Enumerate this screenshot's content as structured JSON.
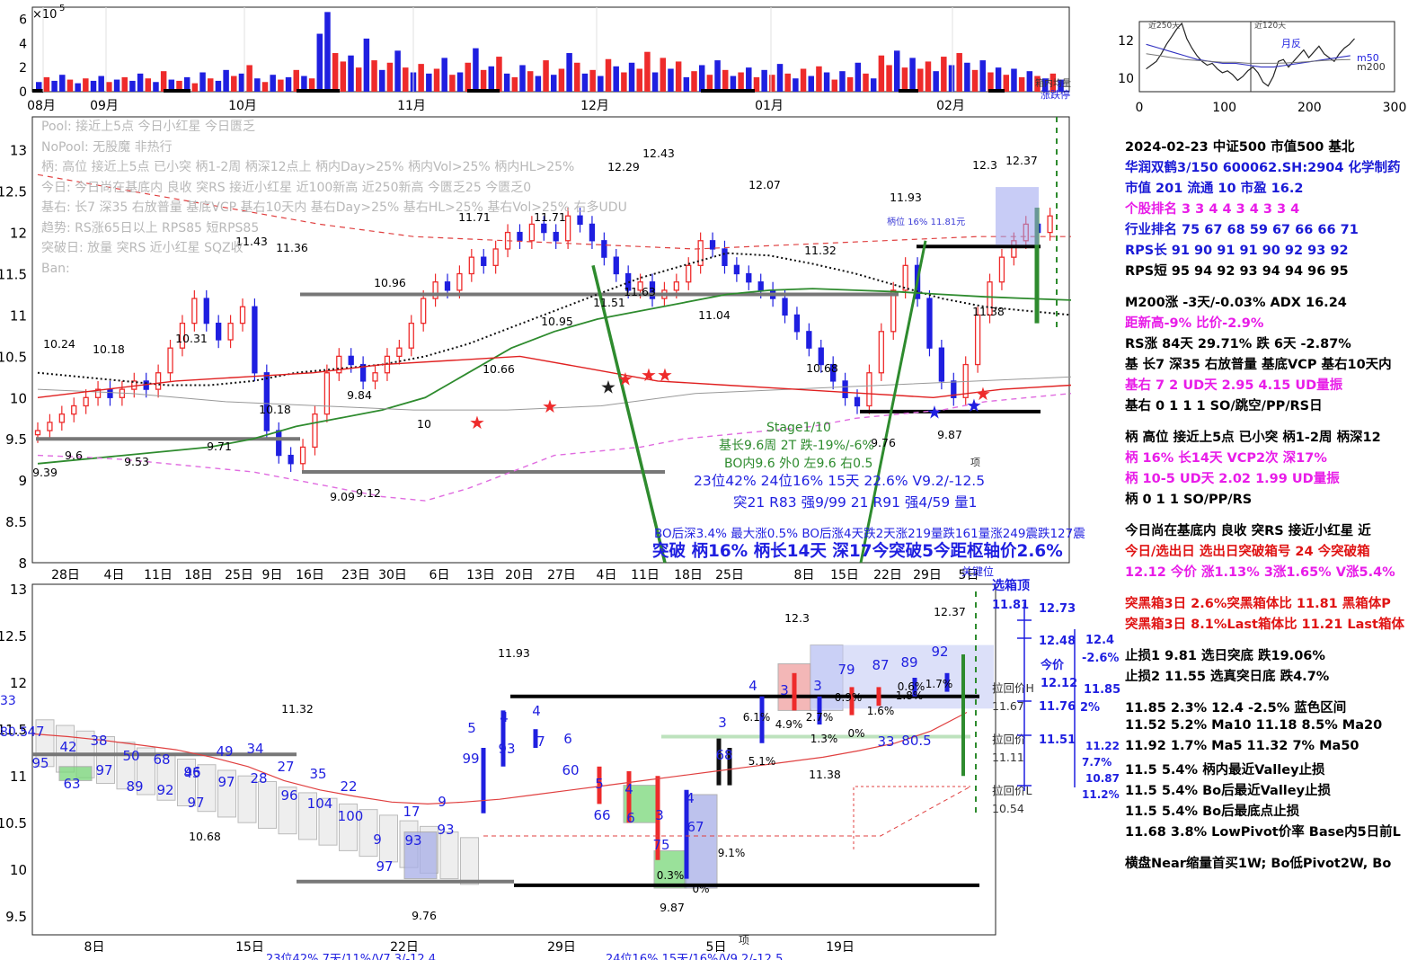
{
  "top_volume": {
    "exponent_label": "×10",
    "exponent_power": "5",
    "y_ticks": [
      "6",
      "4",
      "2",
      "0"
    ],
    "x_months": [
      "08月",
      "09月",
      "10月",
      "11月",
      "12月",
      "01月",
      "02月"
    ],
    "legend": [
      "箱内均量",
      "涨跌停"
    ],
    "bars": [
      {
        "v": 0.8,
        "c": "b"
      },
      {
        "v": 1.2,
        "c": "r"
      },
      {
        "v": 0.9,
        "c": "b"
      },
      {
        "v": 1.4,
        "c": "b"
      },
      {
        "v": 1.0,
        "c": "r"
      },
      {
        "v": 0.7,
        "c": "b"
      },
      {
        "v": 1.1,
        "c": "r"
      },
      {
        "v": 0.9,
        "c": "b"
      },
      {
        "v": 1.3,
        "c": "b"
      },
      {
        "v": 0.8,
        "c": "r"
      },
      {
        "v": 1.0,
        "c": "b"
      },
      {
        "v": 1.2,
        "c": "r"
      },
      {
        "v": 0.9,
        "c": "b"
      },
      {
        "v": 1.5,
        "c": "b"
      },
      {
        "v": 1.1,
        "c": "r"
      },
      {
        "v": 0.8,
        "c": "b"
      },
      {
        "v": 1.7,
        "c": "r"
      },
      {
        "v": 1.0,
        "c": "b"
      },
      {
        "v": 0.9,
        "c": "r"
      },
      {
        "v": 1.2,
        "c": "b"
      },
      {
        "v": 0.7,
        "c": "r"
      },
      {
        "v": 1.6,
        "c": "b"
      },
      {
        "v": 1.1,
        "c": "r"
      },
      {
        "v": 0.9,
        "c": "b"
      },
      {
        "v": 1.8,
        "c": "b"
      },
      {
        "v": 1.3,
        "c": "r"
      },
      {
        "v": 1.5,
        "c": "b"
      },
      {
        "v": 2.2,
        "c": "r"
      },
      {
        "v": 1.1,
        "c": "b"
      },
      {
        "v": 0.8,
        "c": "r"
      },
      {
        "v": 1.4,
        "c": "b"
      },
      {
        "v": 1.0,
        "c": "r"
      },
      {
        "v": 1.2,
        "c": "b"
      },
      {
        "v": 1.8,
        "c": "r"
      },
      {
        "v": 1.3,
        "c": "b"
      },
      {
        "v": 1.1,
        "c": "r"
      },
      {
        "v": 4.8,
        "c": "b"
      },
      {
        "v": 6.6,
        "c": "b"
      },
      {
        "v": 3.2,
        "c": "r"
      },
      {
        "v": 2.5,
        "c": "r"
      },
      {
        "v": 3.0,
        "c": "b"
      },
      {
        "v": 2.0,
        "c": "r"
      },
      {
        "v": 4.4,
        "c": "b"
      },
      {
        "v": 2.6,
        "c": "r"
      },
      {
        "v": 1.8,
        "c": "b"
      },
      {
        "v": 2.4,
        "c": "r"
      },
      {
        "v": 3.4,
        "c": "b"
      },
      {
        "v": 2.0,
        "c": "r"
      },
      {
        "v": 1.6,
        "c": "b"
      },
      {
        "v": 2.3,
        "c": "r"
      },
      {
        "v": 1.5,
        "c": "b"
      },
      {
        "v": 1.9,
        "c": "r"
      },
      {
        "v": 2.8,
        "c": "b"
      },
      {
        "v": 1.4,
        "c": "r"
      },
      {
        "v": 1.6,
        "c": "b"
      },
      {
        "v": 2.4,
        "c": "r"
      },
      {
        "v": 3.6,
        "c": "b"
      },
      {
        "v": 1.8,
        "c": "r"
      },
      {
        "v": 2.1,
        "c": "b"
      },
      {
        "v": 2.9,
        "c": "r"
      },
      {
        "v": 1.5,
        "c": "b"
      },
      {
        "v": 1.2,
        "c": "r"
      },
      {
        "v": 2.2,
        "c": "b"
      },
      {
        "v": 1.7,
        "c": "r"
      },
      {
        "v": 1.3,
        "c": "b"
      },
      {
        "v": 2.6,
        "c": "r"
      },
      {
        "v": 1.4,
        "c": "b"
      },
      {
        "v": 1.9,
        "c": "r"
      },
      {
        "v": 3.2,
        "c": "b"
      },
      {
        "v": 2.4,
        "c": "r"
      },
      {
        "v": 1.5,
        "c": "b"
      },
      {
        "v": 1.8,
        "c": "r"
      },
      {
        "v": 1.3,
        "c": "b"
      },
      {
        "v": 2.7,
        "c": "r"
      },
      {
        "v": 2.1,
        "c": "b"
      },
      {
        "v": 1.6,
        "c": "r"
      },
      {
        "v": 2.4,
        "c": "b"
      },
      {
        "v": 1.9,
        "c": "r"
      },
      {
        "v": 3.3,
        "c": "r"
      },
      {
        "v": 1.6,
        "c": "b"
      },
      {
        "v": 2.8,
        "c": "r"
      },
      {
        "v": 1.9,
        "c": "b"
      },
      {
        "v": 2.5,
        "c": "r"
      },
      {
        "v": 1.2,
        "c": "b"
      },
      {
        "v": 1.7,
        "c": "r"
      },
      {
        "v": 2.2,
        "c": "b"
      },
      {
        "v": 1.4,
        "c": "r"
      },
      {
        "v": 2.6,
        "c": "b"
      },
      {
        "v": 1.8,
        "c": "r"
      },
      {
        "v": 1.3,
        "c": "b"
      },
      {
        "v": 1.6,
        "c": "r"
      },
      {
        "v": 2.0,
        "c": "b"
      },
      {
        "v": 1.2,
        "c": "r"
      },
      {
        "v": 1.8,
        "c": "b"
      },
      {
        "v": 1.4,
        "c": "r"
      },
      {
        "v": 2.3,
        "c": "b"
      },
      {
        "v": 1.5,
        "c": "r"
      },
      {
        "v": 1.1,
        "c": "b"
      },
      {
        "v": 1.9,
        "c": "r"
      },
      {
        "v": 1.3,
        "c": "b"
      },
      {
        "v": 2.1,
        "c": "r"
      },
      {
        "v": 1.6,
        "c": "b"
      },
      {
        "v": 1.0,
        "c": "r"
      },
      {
        "v": 1.7,
        "c": "b"
      },
      {
        "v": 1.2,
        "c": "r"
      },
      {
        "v": 2.4,
        "c": "b"
      },
      {
        "v": 1.5,
        "c": "r"
      },
      {
        "v": 1.1,
        "c": "b"
      },
      {
        "v": 3.0,
        "c": "r"
      },
      {
        "v": 2.2,
        "c": "r"
      },
      {
        "v": 3.4,
        "c": "b"
      },
      {
        "v": 2.0,
        "c": "r"
      },
      {
        "v": 2.8,
        "c": "b"
      },
      {
        "v": 1.9,
        "c": "r"
      },
      {
        "v": 2.5,
        "c": "r"
      },
      {
        "v": 1.7,
        "c": "b"
      },
      {
        "v": 2.9,
        "c": "r"
      },
      {
        "v": 2.2,
        "c": "b"
      },
      {
        "v": 3.2,
        "c": "r"
      },
      {
        "v": 2.4,
        "c": "b"
      },
      {
        "v": 1.8,
        "c": "r"
      },
      {
        "v": 2.6,
        "c": "b"
      },
      {
        "v": 1.6,
        "c": "r"
      },
      {
        "v": 2.0,
        "c": "b"
      },
      {
        "v": 1.4,
        "c": "r"
      },
      {
        "v": 1.9,
        "c": "b"
      },
      {
        "v": 1.2,
        "c": "r"
      },
      {
        "v": 1.7,
        "c": "b"
      },
      {
        "v": 1.3,
        "c": "r"
      },
      {
        "v": 1.1,
        "c": "b"
      },
      {
        "v": 1.5,
        "c": "r"
      },
      {
        "v": 1.0,
        "c": "b"
      }
    ]
  },
  "inset": {
    "y_ticks": [
      "12",
      "10"
    ],
    "x_ticks": [
      "0",
      "100",
      "200",
      "300"
    ],
    "labels": [
      "近250天",
      "近120天",
      "月反",
      "m50",
      "m200"
    ]
  },
  "pool_text": [
    "Pool: 接近上5点 今日小红星 今日匮乏",
    "NoPool: 无股魔 非热行",
    "柄: 高位 接近上5点 已小突 柄1-2周 柄深12点上 柄内Day>25% 柄内Vol>25% 柄内HL>25%",
    "今日: 今日尚在基底内 良收 突RS 接近小红星 近100新高 近250新高 今匮乏25 今匮乏0",
    "基右: 长7 深35 右放普量 基底VCP 基右10天内 基右Day>25% 基右HL>25% 基右Vol>25% 右多UDU",
    "趋势: RS涨65日以上 RPS85 短RPS85",
    "突破日: 放量 突RS 近小红星 SQZ收",
    "Ban:"
  ],
  "main_chart": {
    "y_ticks": [
      "13",
      "12.5",
      "12",
      "11.5",
      "11",
      "10.5",
      "10",
      "9.5",
      "9",
      "8.5",
      "8"
    ],
    "x_ticks": [
      "28日",
      "4日",
      "11日",
      "18日",
      "25日",
      "9日",
      "16日",
      "23日",
      "30日",
      "6日",
      "13日",
      "20日",
      "27日",
      "4日",
      "11日",
      "18日",
      "25日",
      "8日",
      "15日",
      "22日",
      "29日",
      "5日"
    ],
    "price_labels": [
      "12.43",
      "12.29",
      "12.3",
      "12.37",
      "12.07",
      "11.93",
      "11.71",
      "11.71",
      "11.43",
      "11.36",
      "10.96",
      "10.24",
      "10.18",
      "10.31",
      "10.18",
      "9.84",
      "9.71",
      "9.6",
      "9.53",
      "9.39",
      "9.09",
      "9.12",
      "10.95",
      "10.66",
      "11.63",
      "11.51",
      "11.04",
      "11.32",
      "10.68",
      "9.76",
      "9.87",
      "11.38",
      "10"
    ],
    "annotations": {
      "stage": "Stage1/10",
      "base1": "基长9.6周 2T 跌-19%/-6%",
      "base2": "BO内9.6 外0 左9.6 右0.5",
      "rank1": "23位42% 24位16% 15天 22.6% V9.2/-12.5",
      "rank2": "突21 R83 强9/99 21 R91 强4/59 量1",
      "bo": "BO后深3.4% 最大涨0.5% BO后涨4天跌2天涨219量跌161量涨249震跌127震",
      "breakout": "突破 柄16% 柄长14天 深17今突破5今距枢轴价2.6%",
      "handle_box": "柄位 16%  11.81元",
      "top_label": "项",
      "key_pos": "关键位"
    }
  },
  "lower_chart": {
    "y_ticks": [
      "13",
      "12.5",
      "12",
      "11.5",
      "11",
      "10.5",
      "10",
      "9.5"
    ],
    "x_ticks": [
      "8日",
      "15日",
      "22日",
      "29日",
      "5日",
      "19日"
    ],
    "price_labels": [
      "12.37",
      "12.3",
      "11.93",
      "11.32",
      "11.38",
      "10.68",
      "9.76",
      "9.87"
    ],
    "rank_labels": [
      "47",
      "42",
      "38",
      "50",
      "68",
      "45",
      "49",
      "34",
      "27",
      "35",
      "22",
      "17",
      "9",
      "5",
      "4",
      "4",
      "6",
      "5",
      "4",
      "3",
      "4",
      "3",
      "4",
      "3",
      "3",
      "79",
      "87",
      "89",
      "92",
      "95",
      "63",
      "97",
      "89",
      "92",
      "96",
      "97",
      "97",
      "28",
      "96",
      "104",
      "100",
      "9",
      "93",
      "93",
      "97",
      "99",
      "93",
      "7",
      "60",
      "66",
      "6",
      "75",
      "67",
      "68",
      "6.1%",
      "4.9%",
      "2.7%",
      "0.9%",
      "1.6%",
      "1.8%",
      "1.7%",
      "0.6%",
      "0.3%",
      "0%",
      "9.1%",
      "5.1%",
      "1.3%",
      "0%",
      "33",
      "80.5"
    ],
    "right_labels": {
      "box_top": "选箱顶",
      "p1": "11.81",
      "p2": "12.73",
      "p3": "12.48",
      "p4": "12.4",
      "p5": "-2.6%",
      "today": "今价",
      "p6": "12.12",
      "p7": "11.76",
      "p8": "11.85",
      "p9": "2%",
      "back_h": "拉回价H",
      "p10": "11.67",
      "back": "拉回价",
      "p11": "11.11",
      "back_l": "拉回价L",
      "p12": "10.54",
      "p13": "11.51",
      "p14": "11.22",
      "p15": "7.7%",
      "p16": "10.87",
      "p17": "11.2%",
      "bottom": "项",
      "foot1": "23位42%  7天/11%/V7.3/-12.4",
      "foot2": "24位16%  15天/16%/V9.2/-12.5"
    }
  },
  "side_panel": [
    {
      "t": "2024-02-23 中证500 市值500 基北",
      "c": "black"
    },
    {
      "t": "华润双鹤3/150 600062.SH:2904 化学制药",
      "c": "blue"
    },
    {
      "t": "市值 201   流通 10  市盈 16.2",
      "c": "blue"
    },
    {
      "t": " 个股排名 3    3    4    4    3    4    3    3    4",
      "c": "mag"
    },
    {
      "t": " 行业排名 75   67   68   59   67   66   66   71",
      "c": "blue"
    },
    {
      "t": " RPS长 91    90   91   91   90   92   93   92",
      "c": "blue"
    },
    {
      "t": " RPS短 95    94   92   93   94   94   96   95",
      "c": "black"
    },
    {
      "t": "",
      "c": "black"
    },
    {
      "t": "M200涨 -3天/-0.03%   ADX 16.24",
      "c": "black"
    },
    {
      "t": "距新高-9%   比价-2.9%",
      "c": "mag"
    },
    {
      "t": "RS涨 84天 29.71%  跌 6天 -2.87%",
      "c": "black"
    },
    {
      "t": "基 长7 深35 右放普量 基底VCP 基右10天内",
      "c": "black"
    },
    {
      "t": "基右 7 2 UD天  2.95 4.15 UD量振",
      "c": "mag"
    },
    {
      "t": "基右 0 1 1 1 SO/跳空/PP/RS日",
      "c": "black"
    },
    {
      "t": "",
      "c": "black"
    },
    {
      "t": "柄 高位 接近上5点 已小突 柄1-2周 柄深12",
      "c": "black"
    },
    {
      "t": "柄 16%  长14天   VCP2次  深17%",
      "c": "mag"
    },
    {
      "t": "柄 10-5 UD天  2.02 1.99 UD量振",
      "c": "mag"
    },
    {
      "t": "柄 0 1 1 SO/PP/RS",
      "c": "black"
    },
    {
      "t": "",
      "c": "black"
    },
    {
      "t": "今日尚在基底内 良收 突RS 接近小红星 近",
      "c": "black"
    },
    {
      "t": "今日/选出日  选出日突破箱号 24 今突破箱",
      "c": "red"
    },
    {
      "t": "12.12 今价  涨1.13% 3涨1.65% V涨5.4%",
      "c": "mag"
    },
    {
      "t": "",
      "c": "black"
    },
    {
      "t": "突黑箱3日 2.6%突黑箱体比 11.81 黑箱体P",
      "c": "red"
    },
    {
      "t": "突黑箱3日 8.1%Last箱体比 11.21 Last箱体",
      "c": "red"
    },
    {
      "t": "",
      "c": "black"
    },
    {
      "t": "止损1 9.81 选日突底 跌19.06%",
      "c": "black"
    },
    {
      "t": "止损2 11.55 选真突日底 跌4.7%",
      "c": "black"
    },
    {
      "t": "",
      "c": "black"
    },
    {
      "t": "11.85 2.3% 12.4 -2.5%  蓝色区间",
      "c": "black"
    },
    {
      "t": "  11.52 5.2% Ma10    11.18  8.5% Ma20",
      "c": "mix1"
    },
    {
      "t": "  11.92  1.7% Ma5     11.32  7% Ma50",
      "c": "mix2"
    },
    {
      "t": "11.5 5.4% 柄内最近Valley止损",
      "c": "black"
    },
    {
      "t": "11.5 5.4% Bo后最近Valley止损",
      "c": "black"
    },
    {
      "t": "11.5 5.4% Bo后最底点止损",
      "c": "black"
    },
    {
      "t": "11.68 3.8% LowPivot价率   Base内5日前L",
      "c": "black"
    },
    {
      "t": "",
      "c": "black"
    },
    {
      "t": "横盘Near缩量首买1W; Bo低Pivot2W, Bo",
      "c": "black"
    }
  ]
}
